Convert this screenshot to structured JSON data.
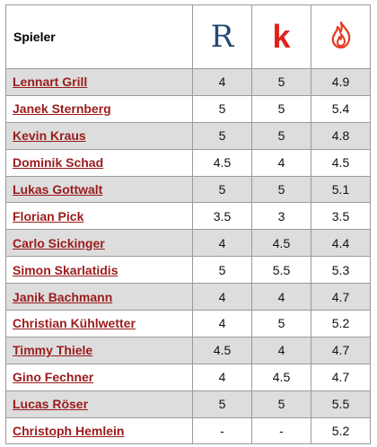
{
  "header": {
    "col_player": "Spieler",
    "logo_r": "R",
    "logo_k": "k",
    "logo_fire": "flame-icon"
  },
  "colors": {
    "name_link": "#9b1b1b",
    "stripe": "#dddddd",
    "logo_r": "#214a73",
    "logo_k": "#e2211c",
    "flame": "#e53a1e"
  },
  "rows": [
    {
      "name": "Lennart Grill",
      "r": "4",
      "k": "5",
      "f": "4.9"
    },
    {
      "name": "Janek Sternberg",
      "r": "5",
      "k": "5",
      "f": "5.4"
    },
    {
      "name": "Kevin Kraus",
      "r": "5",
      "k": "5",
      "f": "4.8"
    },
    {
      "name": "Dominik Schad",
      "r": "4.5",
      "k": "4",
      "f": "4.5"
    },
    {
      "name": "Lukas Gottwalt",
      "r": "5",
      "k": "5",
      "f": "5.1"
    },
    {
      "name": "Florian Pick",
      "r": "3.5",
      "k": "3",
      "f": "3.5"
    },
    {
      "name": "Carlo Sickinger",
      "r": "4",
      "k": "4.5",
      "f": "4.4"
    },
    {
      "name": "Simon Skarlatidis",
      "r": "5",
      "k": "5.5",
      "f": "5.3"
    },
    {
      "name": "Janik Bachmann",
      "r": "4",
      "k": "4",
      "f": "4.7"
    },
    {
      "name": "Christian Kühlwetter",
      "r": "4",
      "k": "5",
      "f": "5.2"
    },
    {
      "name": "Timmy Thiele",
      "r": "4.5",
      "k": "4",
      "f": "4.7"
    },
    {
      "name": "Gino Fechner",
      "r": "4",
      "k": "4.5",
      "f": "4.7"
    },
    {
      "name": "Lucas Röser",
      "r": "5",
      "k": "5",
      "f": "5.5"
    },
    {
      "name": "Christoph Hemlein",
      "r": "-",
      "k": "-",
      "f": "5.2"
    }
  ]
}
